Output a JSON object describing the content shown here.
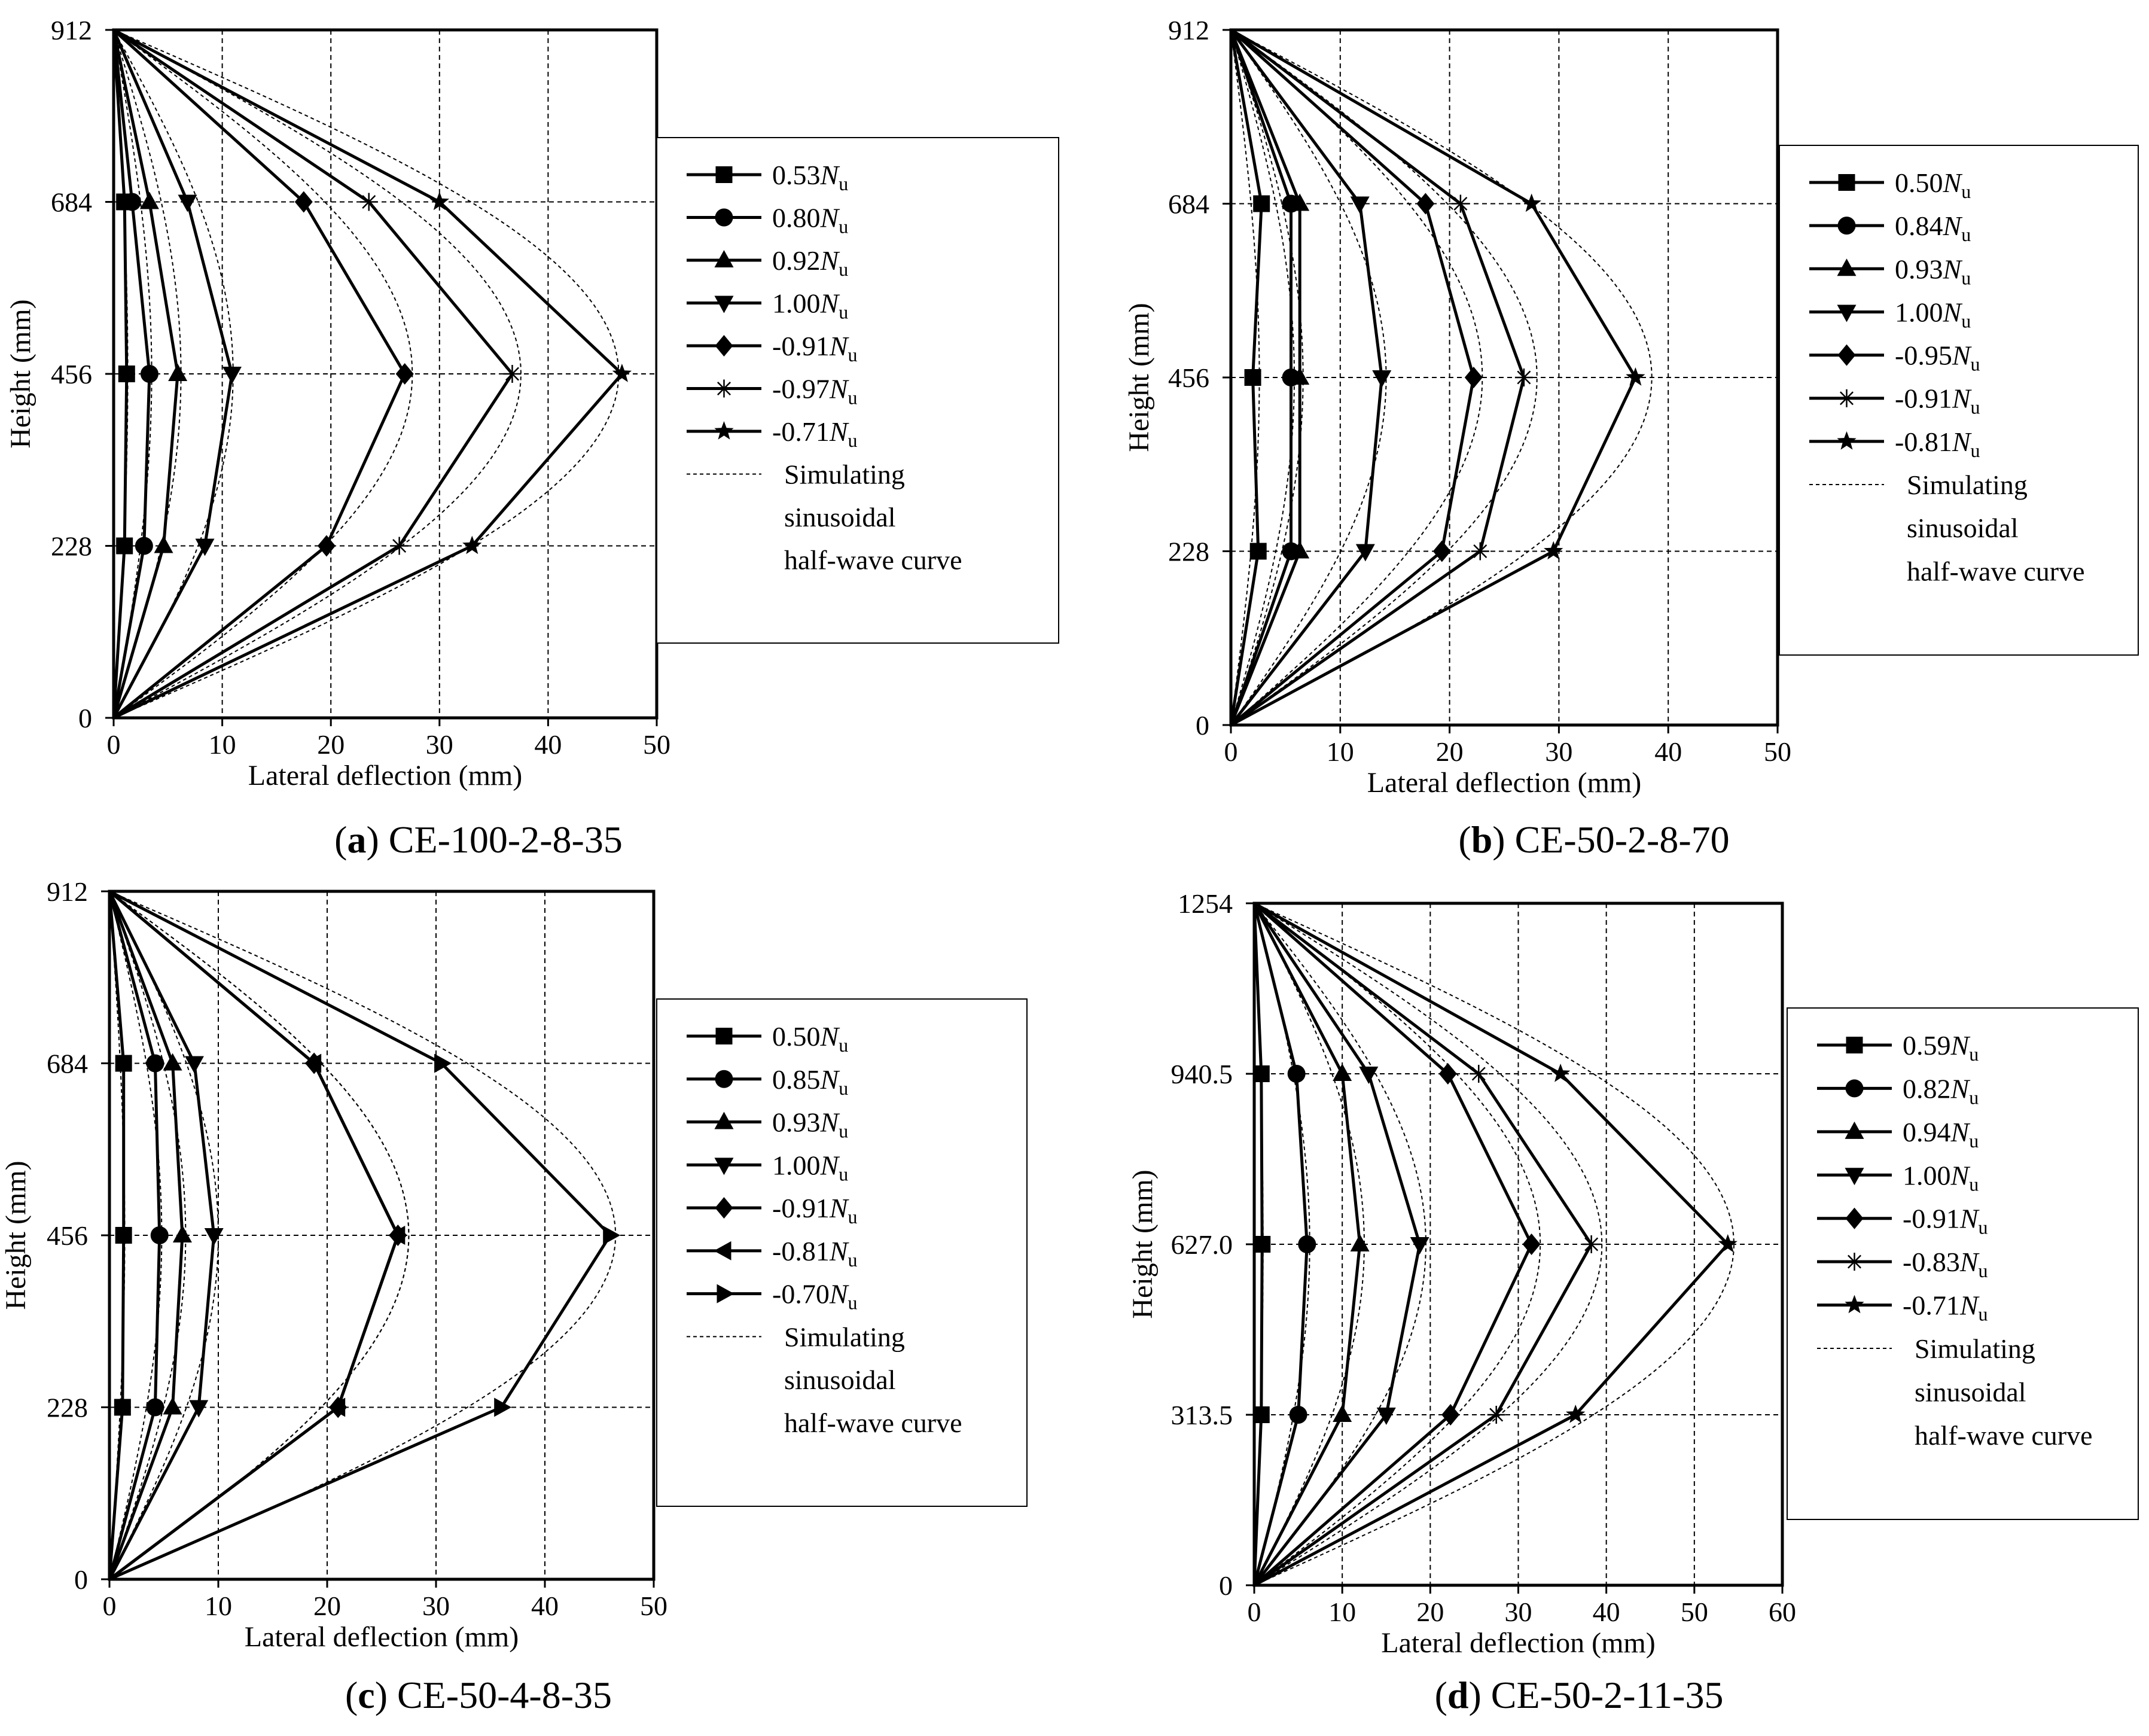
{
  "chart_data": [
    {
      "id": "a",
      "type": "line",
      "panel_letter": "(a)",
      "panel_name": "CE-100-2-8-35",
      "xlabel": "Lateral deflection (mm)",
      "ylabel": "Height (mm)",
      "xlim": [
        0,
        50
      ],
      "ylim": [
        0,
        912
      ],
      "x_ticks": [
        0,
        10,
        20,
        30,
        40,
        50
      ],
      "x_tick_labels": [
        "0",
        "10",
        "20",
        "30",
        "40",
        "50"
      ],
      "y_ticks": [
        0,
        228,
        456,
        684,
        912
      ],
      "y_tick_labels": [
        "0",
        "228",
        "456",
        "684",
        "912"
      ],
      "grid": true,
      "legend_position": "right-outside",
      "heights": [
        0,
        228,
        456,
        684,
        912
      ],
      "series": [
        {
          "name_value": "0.53",
          "marker": "square",
          "values": [
            0,
            1.0,
            1.2,
            1.0,
            0
          ]
        },
        {
          "name_value": "0.80",
          "marker": "circle",
          "values": [
            0,
            2.8,
            3.3,
            1.7,
            0
          ]
        },
        {
          "name_value": "0.92",
          "marker": "triangle-up",
          "values": [
            0,
            4.6,
            5.9,
            3.3,
            0
          ]
        },
        {
          "name_value": "1.00",
          "marker": "triangle-down",
          "values": [
            0,
            8.4,
            10.9,
            6.8,
            0
          ]
        },
        {
          "name_value": "-0.91",
          "marker": "diamond",
          "values": [
            0,
            19.6,
            26.8,
            17.5,
            0
          ]
        },
        {
          "name_value": "-0.97",
          "marker": "asterisk",
          "values": [
            0,
            26.3,
            36.7,
            23.5,
            0
          ]
        },
        {
          "name_value": "-0.71",
          "marker": "star",
          "values": [
            0,
            33.0,
            46.8,
            30.0,
            0
          ]
        }
      ],
      "simulated_peaks": [
        1.3,
        3.5,
        6.2,
        11.0,
        27.5,
        37.5,
        46.5
      ],
      "legend_unit": "N",
      "legend_sub": "u",
      "legend_sim": [
        "Simulating",
        "sinusoidal",
        "half-wave curve"
      ]
    },
    {
      "id": "b",
      "type": "line",
      "panel_letter": "(b)",
      "panel_name": "CE-50-2-8-70",
      "xlabel": "Lateral deflection (mm)",
      "ylabel": "Height (mm)",
      "xlim": [
        0,
        50
      ],
      "ylim": [
        0,
        912
      ],
      "x_ticks": [
        0,
        10,
        20,
        30,
        40,
        50
      ],
      "x_tick_labels": [
        "0",
        "10",
        "20",
        "30",
        "40",
        "50"
      ],
      "y_ticks": [
        0,
        228,
        456,
        684,
        912
      ],
      "y_tick_labels": [
        "0",
        "228",
        "456",
        "684",
        "912"
      ],
      "grid": true,
      "legend_position": "right-outside",
      "heights": [
        0,
        228,
        456,
        684,
        912
      ],
      "series": [
        {
          "name_value": "0.50",
          "marker": "square",
          "values": [
            0,
            2.5,
            2.0,
            2.8,
            0
          ]
        },
        {
          "name_value": "0.84",
          "marker": "circle",
          "values": [
            0,
            5.5,
            5.5,
            5.5,
            0
          ]
        },
        {
          "name_value": "0.93",
          "marker": "triangle-up",
          "values": [
            0,
            6.3,
            6.3,
            6.3,
            0
          ]
        },
        {
          "name_value": "1.00",
          "marker": "triangle-down",
          "values": [
            0,
            12.3,
            13.8,
            11.8,
            0
          ]
        },
        {
          "name_value": "-0.95",
          "marker": "diamond",
          "values": [
            0,
            19.3,
            22.2,
            17.8,
            0
          ]
        },
        {
          "name_value": "-0.91",
          "marker": "asterisk",
          "values": [
            0,
            22.8,
            26.8,
            21.0,
            0
          ]
        },
        {
          "name_value": "-0.81",
          "marker": "star",
          "values": [
            0,
            29.5,
            37.0,
            27.5,
            0
          ]
        }
      ],
      "simulated_peaks": [
        2.6,
        5.8,
        6.6,
        14.2,
        23.0,
        28.0,
        38.5
      ],
      "legend_unit": "N",
      "legend_sub": "u",
      "legend_sim": [
        "Simulating",
        "sinusoidal",
        "half-wave curve"
      ]
    },
    {
      "id": "c",
      "type": "line",
      "panel_letter": "(c)",
      "panel_name": "CE-50-4-8-35",
      "xlabel": "Lateral deflection (mm)",
      "ylabel": "Height (mm)",
      "xlim": [
        0,
        50
      ],
      "ylim": [
        0,
        912
      ],
      "x_ticks": [
        0,
        10,
        20,
        30,
        40,
        50
      ],
      "x_tick_labels": [
        "0",
        "10",
        "20",
        "30",
        "40",
        "50"
      ],
      "y_ticks": [
        0,
        228,
        456,
        684,
        912
      ],
      "y_tick_labels": [
        "0",
        "228",
        "456",
        "684",
        "912"
      ],
      "grid": true,
      "legend_position": "right-outside",
      "heights": [
        0,
        228,
        456,
        684,
        912
      ],
      "series": [
        {
          "name_value": "0.50",
          "marker": "square",
          "values": [
            0,
            1.2,
            1.3,
            1.3,
            0
          ]
        },
        {
          "name_value": "0.85",
          "marker": "circle",
          "values": [
            0,
            4.2,
            4.6,
            4.2,
            0
          ]
        },
        {
          "name_value": "0.93",
          "marker": "triangle-up",
          "values": [
            0,
            5.8,
            6.7,
            5.8,
            0
          ]
        },
        {
          "name_value": "1.00",
          "marker": "triangle-down",
          "values": [
            0,
            8.2,
            9.6,
            7.8,
            0
          ]
        },
        {
          "name_value": "-0.91",
          "marker": "diamond",
          "values": [
            0,
            21.0,
            26.5,
            18.8,
            0
          ]
        },
        {
          "name_value": "-0.81",
          "marker": "triangle-left",
          "values": [
            0,
            21.0,
            26.5,
            18.8,
            0
          ]
        },
        {
          "name_value": "-0.70",
          "marker": "triangle-right",
          "values": [
            0,
            36.0,
            46.0,
            30.5,
            0
          ]
        }
      ],
      "simulated_peaks": [
        1.4,
        4.8,
        7.0,
        10.0,
        27.5,
        27.5,
        46.5
      ],
      "legend_unit": "N",
      "legend_sub": "u",
      "legend_sim": [
        "Simulating",
        "sinusoidal",
        "half-wave curve"
      ]
    },
    {
      "id": "d",
      "type": "line",
      "panel_letter": "(d)",
      "panel_name": "CE-50-2-11-35",
      "xlabel": "Lateral deflection (mm)",
      "ylabel": "Height (mm)",
      "xlim": [
        0,
        60
      ],
      "ylim": [
        0,
        1254
      ],
      "x_ticks": [
        0,
        10,
        20,
        30,
        40,
        50,
        60
      ],
      "x_tick_labels": [
        "0",
        "10",
        "20",
        "30",
        "40",
        "50",
        "60"
      ],
      "y_ticks": [
        0,
        313.5,
        627,
        940.5,
        1254
      ],
      "y_tick_labels": [
        "0",
        "313.5",
        "627.0",
        "940.5",
        "1254"
      ],
      "grid": true,
      "legend_position": "right-outside",
      "heights": [
        0,
        313.5,
        627,
        940.5,
        1254
      ],
      "series": [
        {
          "name_value": "0.59",
          "marker": "square",
          "values": [
            0,
            0.8,
            0.9,
            0.8,
            0
          ]
        },
        {
          "name_value": "0.82",
          "marker": "circle",
          "values": [
            0,
            5.0,
            6.0,
            4.8,
            0
          ]
        },
        {
          "name_value": "0.94",
          "marker": "triangle-up",
          "values": [
            0,
            10.0,
            12.0,
            10.0,
            0
          ]
        },
        {
          "name_value": "1.00",
          "marker": "triangle-down",
          "values": [
            0,
            15.0,
            18.8,
            13.0,
            0
          ]
        },
        {
          "name_value": "-0.91",
          "marker": "diamond",
          "values": [
            0,
            22.3,
            31.5,
            22.0,
            0
          ]
        },
        {
          "name_value": "-0.83",
          "marker": "asterisk",
          "values": [
            0,
            27.5,
            38.3,
            25.5,
            0
          ]
        },
        {
          "name_value": "-0.71",
          "marker": "star",
          "values": [
            0,
            36.5,
            53.8,
            34.8,
            0
          ]
        }
      ],
      "simulated_peaks": [
        1.0,
        6.3,
        12.5,
        19.5,
        32.5,
        39.5,
        54.5
      ],
      "legend_unit": "N",
      "legend_sub": "u",
      "legend_sim": [
        "Simulating",
        "sinusoidal",
        "half-wave curve"
      ]
    }
  ]
}
